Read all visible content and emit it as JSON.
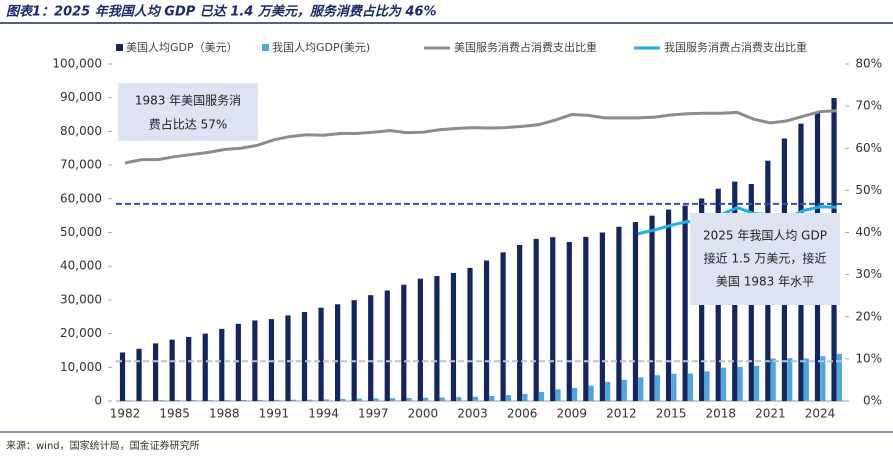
{
  "chart_data": {
    "type": "bar_line",
    "title": "图表1：2025 年我国人均 GDP 已达 1.4 万美元，服务消费占比为 46%",
    "source": "来源：wind，国家统计局，国金证券研究所",
    "categories": [
      "1982",
      null,
      null,
      "1985",
      null,
      null,
      "1988",
      null,
      null,
      "1991",
      null,
      null,
      "1994",
      null,
      null,
      "1997",
      null,
      null,
      "2000",
      null,
      null,
      "2003",
      null,
      null,
      "2006",
      null,
      null,
      "2009",
      null,
      null,
      "2012",
      null,
      null,
      "2015",
      null,
      null,
      "2018",
      null,
      null,
      "2021",
      null,
      null,
      "2024",
      null
    ],
    "series": [
      {
        "name": "美国人均GDP（美元）",
        "kind": "bar",
        "color": "#14255f",
        "values": [
          14400,
          15500,
          17100,
          18200,
          19000,
          20000,
          21400,
          22900,
          23900,
          24300,
          25400,
          26400,
          27700,
          28700,
          29900,
          31400,
          32800,
          34500,
          36300,
          37100,
          38000,
          39500,
          41700,
          44100,
          46300,
          48100,
          48600,
          47200,
          48700,
          50000,
          51700,
          53100,
          55000,
          56800,
          58000,
          60100,
          63000,
          65100,
          64400,
          71300,
          77900,
          82300,
          85800,
          89900
        ]
      },
      {
        "name": "我国人均GDP(美元)",
        "kind": "bar",
        "color": "#4ea7dc",
        "values": [
          200,
          220,
          250,
          290,
          280,
          250,
          280,
          310,
          320,
          330,
          370,
          380,
          470,
          610,
          710,
          780,
          830,
          870,
          960,
          1050,
          1150,
          1290,
          1510,
          1750,
          2100,
          2690,
          3470,
          3830,
          4550,
          5610,
          6300,
          7020,
          7640,
          8070,
          8150,
          8820,
          9900,
          10140,
          10410,
          12600,
          12700,
          12600,
          13300,
          14000
        ]
      },
      {
        "name": "美国服务消费占消费支出比重",
        "kind": "line",
        "axis": "y2",
        "color": "#8c8c8c",
        "values": [
          56.5,
          57.3,
          57.3,
          58,
          58.5,
          59,
          59.7,
          60,
          60.7,
          62,
          62.8,
          63.2,
          63.1,
          63.5,
          63.5,
          63.8,
          64.2,
          63.7,
          63.8,
          64.4,
          64.7,
          64.9,
          64.8,
          64.9,
          65.2,
          65.6,
          66.7,
          68,
          67.8,
          67.2,
          67.2,
          67.2,
          67.4,
          67.9,
          68.2,
          68.3,
          68.3,
          68.5,
          66.9,
          66,
          66.5,
          67.6,
          68.7,
          68.9
        ]
      },
      {
        "name": "我国服务消费占消费支出比重",
        "kind": "line",
        "axis": "y2",
        "color": "#1ab0e8",
        "values": [
          null,
          null,
          null,
          null,
          null,
          null,
          null,
          null,
          null,
          null,
          null,
          null,
          null,
          null,
          null,
          null,
          null,
          null,
          null,
          null,
          null,
          null,
          null,
          null,
          null,
          null,
          null,
          null,
          null,
          null,
          null,
          39.7,
          40.6,
          41.7,
          42.6,
          42.2,
          44.2,
          45.9,
          44.5,
          44.2,
          43.4,
          45.2,
          46.1,
          46
        ]
      }
    ],
    "ylim": [
      0,
      100000
    ],
    "yticks": [
      0,
      {
        "value": 10000,
        "label": "10,000"
      },
      {
        "value": 20000,
        "label": "20,000"
      },
      {
        "value": 30000,
        "label": "30,000"
      },
      {
        "value": 40000,
        "label": "40,000"
      },
      {
        "value": 50000,
        "label": "50,000"
      },
      {
        "value": 60000,
        "label": "60,000"
      },
      {
        "value": 70000,
        "label": "70,000"
      },
      {
        "value": 80000,
        "label": "80,000"
      },
      {
        "value": 90000,
        "label": "90,000"
      },
      {
        "value": 100000,
        "label": "100,000"
      }
    ],
    "y2lim": [
      0,
      80
    ],
    "y2ticks": [
      {
        "value": 0,
        "label": "0%"
      },
      {
        "value": 10,
        "label": "10%"
      },
      {
        "value": 20,
        "label": "20%"
      },
      {
        "value": 30,
        "label": "30%"
      },
      {
        "value": 40,
        "label": "40%"
      },
      {
        "value": 50,
        "label": "50%"
      },
      {
        "value": 60,
        "label": "60%"
      },
      {
        "value": 70,
        "label": "70%"
      },
      {
        "value": 80,
        "label": "80%"
      }
    ],
    "reference_lines": [
      {
        "value": 58500,
        "color": "#2a52be"
      },
      {
        "value": 11800,
        "color": "#b4c4e4"
      }
    ],
    "annotations": [
      {
        "lines": [
          "1983 年美国服务消",
          "费占比达 57%"
        ]
      },
      {
        "lines": [
          "2025 年我国人均 GDP",
          "接近 1.5 万美元，接近",
          "美国 1983 年水平"
        ]
      }
    ]
  }
}
